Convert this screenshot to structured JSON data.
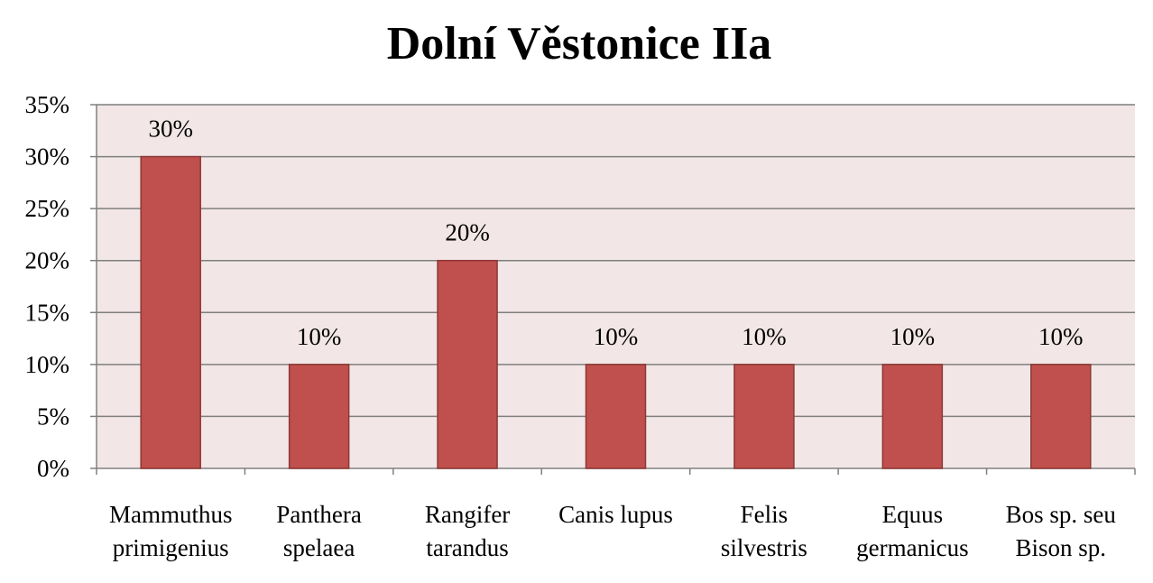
{
  "chart_data": {
    "type": "bar",
    "title": "Dolní Věstonice IIa",
    "xlabel": "",
    "ylabel": "",
    "categories": [
      [
        "Mammuthus",
        "primigenius"
      ],
      [
        "Panthera",
        "spelaea"
      ],
      [
        "Rangifer",
        "tarandus"
      ],
      [
        "Canis lupus"
      ],
      [
        "Felis",
        "silvestris"
      ],
      [
        "Equus",
        "germanicus"
      ],
      [
        "Bos sp. seu",
        "Bison sp."
      ]
    ],
    "values": [
      30,
      10,
      20,
      10,
      10,
      10,
      10
    ],
    "value_labels": [
      "30%",
      "10%",
      "20%",
      "10%",
      "10%",
      "10%",
      "10%"
    ],
    "ylim": [
      0,
      35
    ],
    "yticks": [
      0,
      5,
      10,
      15,
      20,
      25,
      30,
      35
    ],
    "ytick_labels": [
      "0%",
      "5%",
      "10%",
      "15%",
      "20%",
      "25%",
      "30%",
      "35%"
    ],
    "grid": true,
    "legend": "none",
    "colors": {
      "bar_fill": "#c0504d",
      "bar_stroke": "#8c3836",
      "plot_bg": "#f2e6e6",
      "grid": "#7f7f7f",
      "axis": "#808080"
    }
  }
}
